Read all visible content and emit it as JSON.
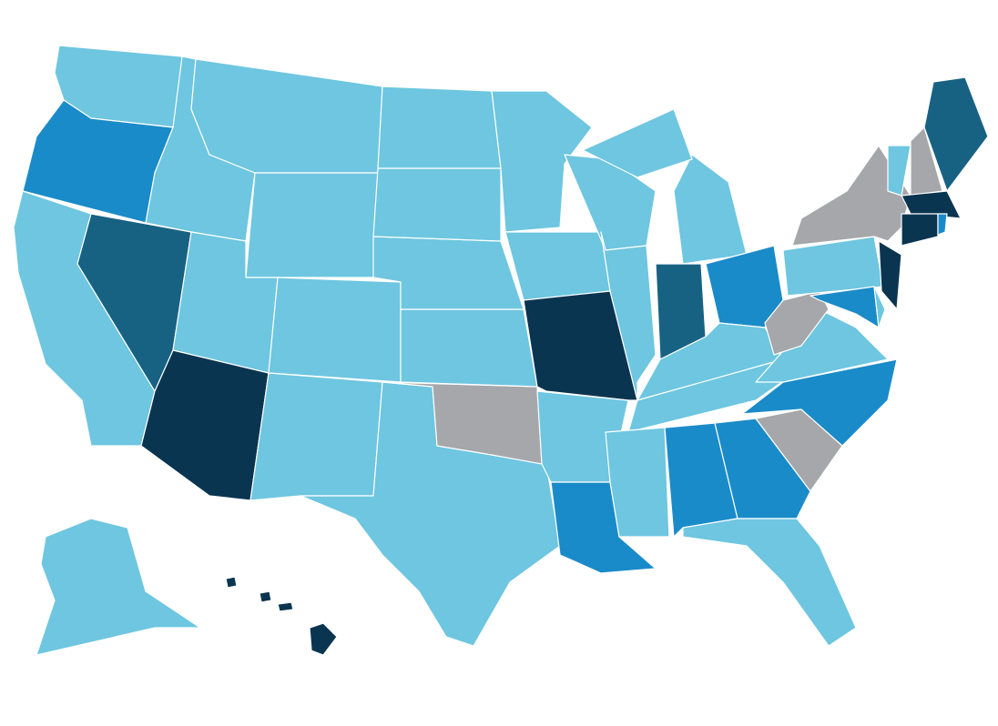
{
  "map": {
    "palette": [
      "#6ec6e0",
      "#1a8bc9",
      "#176283",
      "#0a3550",
      "#a6a7aa"
    ]
  }
}
